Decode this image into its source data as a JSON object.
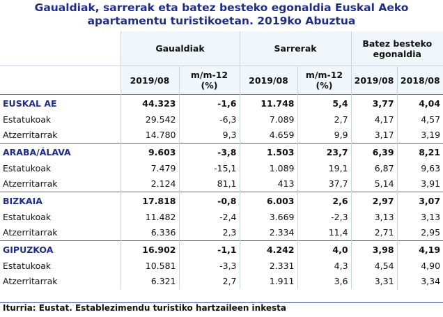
{
  "title": {
    "line1": "Gaualdiak, sarrerak eta batez besteko egonaldia Euskal Aeko",
    "line2": "apartamentu turistikoetan. 2019ko Abuztua"
  },
  "headers": {
    "groups": [
      "Gaualdiak",
      "Sarrerak",
      "Batez besteko egonaldia"
    ],
    "cols": [
      "2019/08",
      "m/m-12 (%)",
      "2019/08",
      "m/m-12 (%)",
      "2019/08",
      "2018/08"
    ]
  },
  "rows": [
    {
      "label": "EUSKAL AE",
      "main": true,
      "values": [
        "44.323",
        "-1,6",
        "11.748",
        "5,4",
        "3,77",
        "4,04"
      ]
    },
    {
      "label": "Estatukoak",
      "main": false,
      "values": [
        "29.542",
        "-6,3",
        "7.089",
        "2,7",
        "4,17",
        "4,57"
      ]
    },
    {
      "label": "Atzerritarrak",
      "main": false,
      "values": [
        "14.780",
        "9,3",
        "4.659",
        "9,9",
        "3,17",
        "3,19"
      ]
    },
    {
      "label": "ARABA/ÁLAVA",
      "main": true,
      "values": [
        "9.603",
        "-3,8",
        "1.503",
        "23,7",
        "6,39",
        "8,21"
      ]
    },
    {
      "label": "Estatukoak",
      "main": false,
      "values": [
        "7.479",
        "-15,1",
        "1.089",
        "19,1",
        "6,87",
        "9,63"
      ]
    },
    {
      "label": "Atzerritarrak",
      "main": false,
      "values": [
        "2.124",
        "81,1",
        "413",
        "37,7",
        "5,14",
        "3,91"
      ]
    },
    {
      "label": "BIZKAIA",
      "main": true,
      "values": [
        "17.818",
        "-0,8",
        "6.003",
        "2,6",
        "2,97",
        "3,07"
      ]
    },
    {
      "label": "Estatukoak",
      "main": false,
      "values": [
        "11.482",
        "-2,4",
        "3.669",
        "-2,3",
        "3,13",
        "3,13"
      ]
    },
    {
      "label": "Atzerritarrak",
      "main": false,
      "values": [
        "6.336",
        "2,3",
        "2.334",
        "11,4",
        "2,71",
        "2,95"
      ]
    },
    {
      "label": "GIPUZKOA",
      "main": true,
      "values": [
        "16.902",
        "-1,1",
        "4.242",
        "4,0",
        "3,98",
        "4,19"
      ]
    },
    {
      "label": "Estatukoak",
      "main": false,
      "values": [
        "10.581",
        "-3,3",
        "2.331",
        "4,3",
        "4,54",
        "4,90"
      ]
    },
    {
      "label": "Atzerritarrak",
      "main": false,
      "values": [
        "6.321",
        "2,7",
        "1.911",
        "3,6",
        "3,31",
        "3,34"
      ]
    }
  ],
  "source": "Iturria: Eustat. Establezimendu turistiko hartzaileen inkesta"
}
